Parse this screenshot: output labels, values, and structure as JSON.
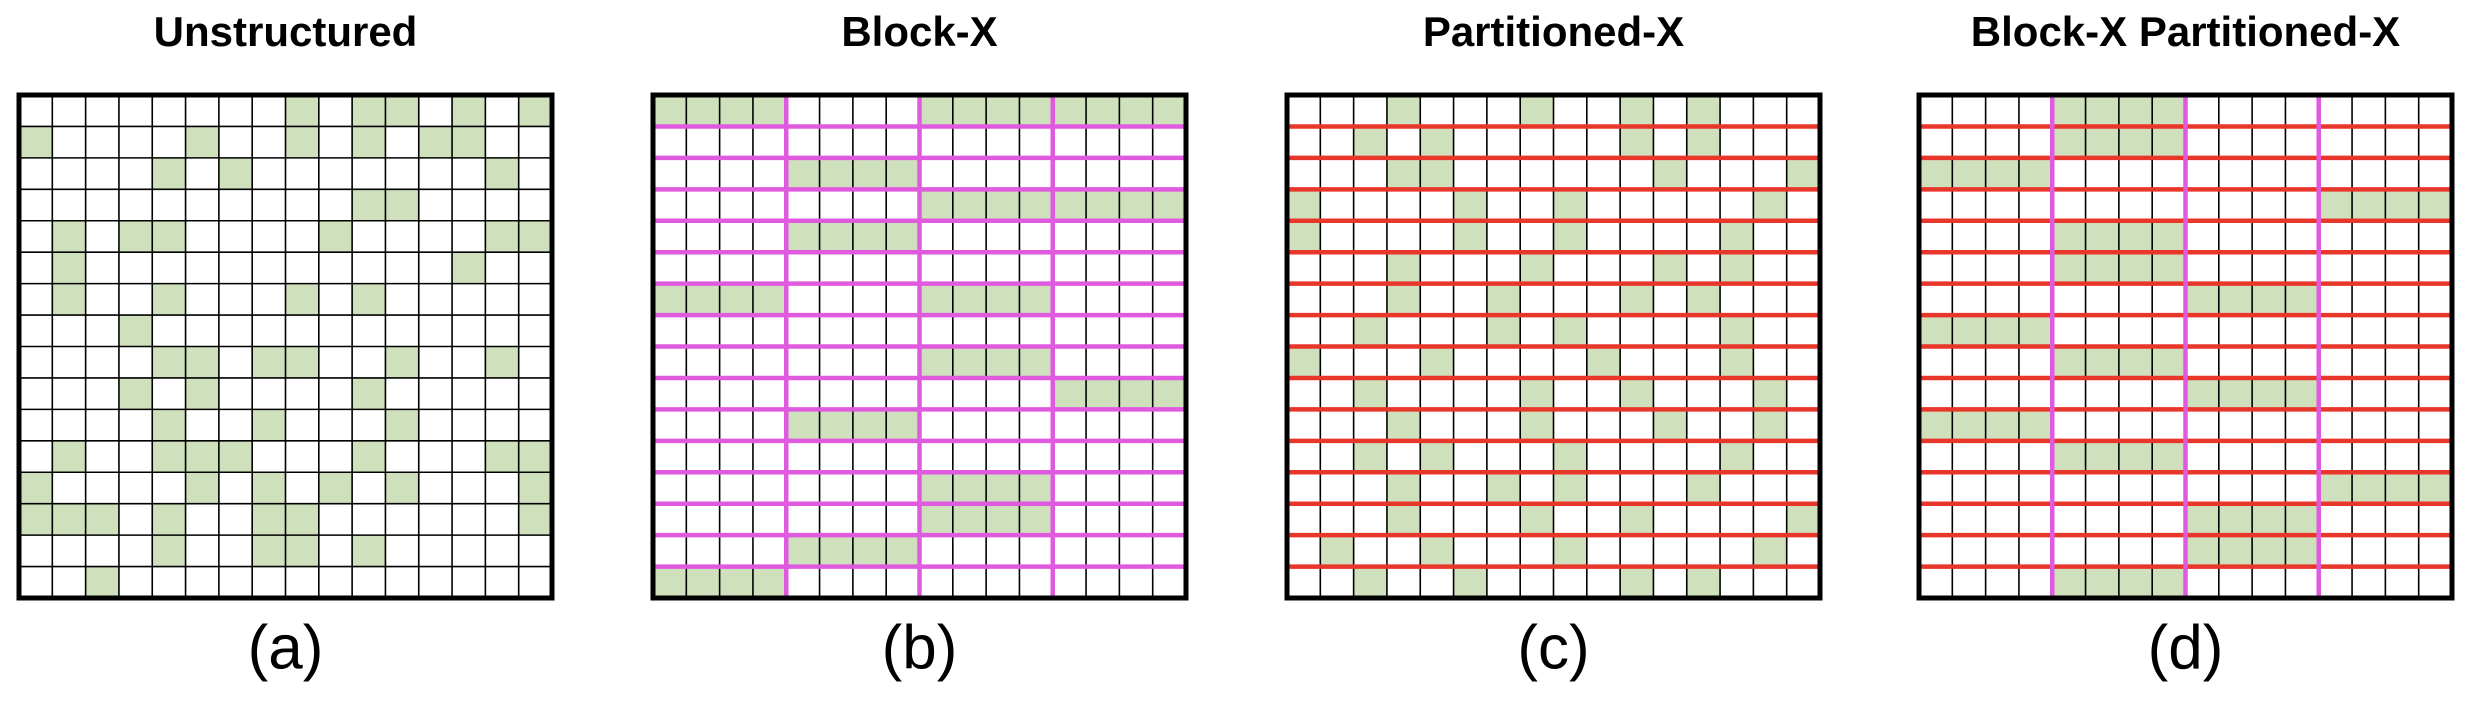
{
  "panels": [
    {
      "title": "Unstructured",
      "caption": "(a)"
    },
    {
      "title": "Block-X",
      "caption": "(b)"
    },
    {
      "title": "Partitioned-X",
      "caption": "(c)"
    },
    {
      "title": "Block-X Partitioned-X",
      "caption": "(d)"
    }
  ]
}
